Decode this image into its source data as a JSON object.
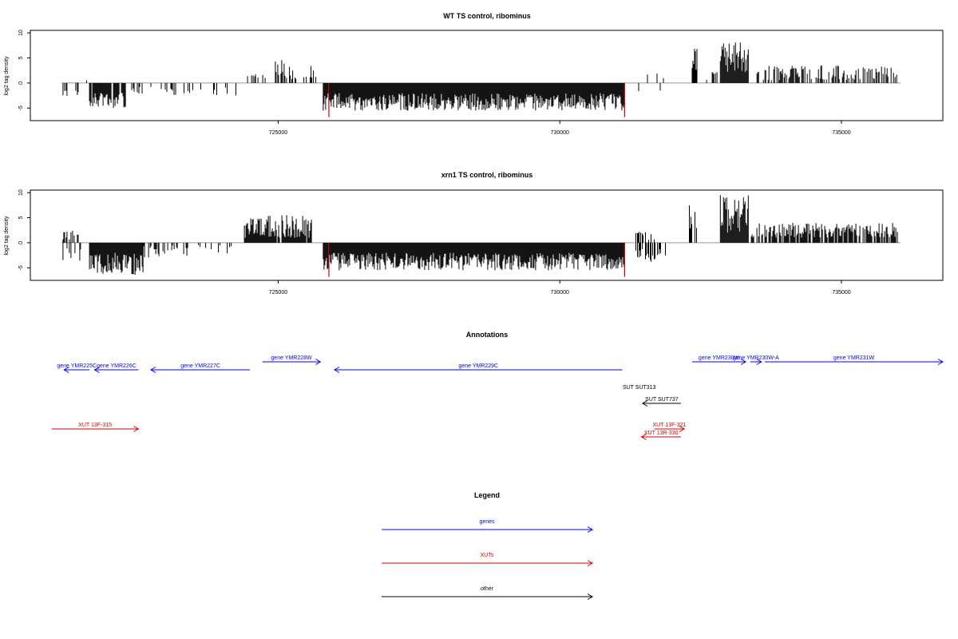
{
  "chart_data": [
    {
      "type": "bar",
      "title": "WT TS control, ribominus",
      "xlabel": "",
      "ylabel": "log2 tag density",
      "xlim": [
        720600,
        736800
      ],
      "ylim": [
        -7.5,
        10.5
      ],
      "x_ticks": [
        {
          "value": 725000,
          "label": "725000"
        },
        {
          "value": 730000,
          "label": "730000"
        },
        {
          "value": 735000,
          "label": "735000"
        }
      ],
      "y_ticks": [
        {
          "value": -5,
          "label": "-5"
        },
        {
          "value": 0,
          "label": "0"
        },
        {
          "value": 5,
          "label": "5"
        },
        {
          "value": 10,
          "label": "10"
        }
      ],
      "colors": {
        "signal": "#000000",
        "highlight": "#cc0000",
        "baseline": "#999999"
      },
      "segments": [
        {
          "x": [
            721180,
            721450
          ],
          "y": [
            -3,
            -1
          ],
          "density": 0.25,
          "seed": 11
        },
        {
          "x": [
            721400,
            721600
          ],
          "y": [
            0,
            1
          ],
          "density": 0.15,
          "seed": 12
        },
        {
          "x": [
            721650,
            722300
          ],
          "y": [
            -5,
            -2
          ],
          "density": 0.9,
          "seed": 13
        },
        {
          "x": [
            722400,
            723200
          ],
          "y": [
            -2.5,
            -0.5
          ],
          "density": 0.25,
          "seed": 14
        },
        {
          "x": [
            723300,
            724300
          ],
          "y": [
            -2.5,
            -0.5
          ],
          "density": 0.15,
          "seed": 15
        },
        {
          "x": [
            724400,
            724900
          ],
          "y": [
            0.5,
            2
          ],
          "density": 0.2,
          "seed": 16
        },
        {
          "x": [
            724950,
            725150
          ],
          "y": [
            1,
            5
          ],
          "density": 0.5,
          "seed": 17
        },
        {
          "x": [
            725200,
            725700
          ],
          "y": [
            0.5,
            3.5
          ],
          "density": 0.25,
          "seed": 18
        },
        {
          "x": [
            725800,
            731150
          ],
          "y": [
            -5.5,
            -2
          ],
          "density": 1.0,
          "seed": 19
        },
        {
          "x": [
            731400,
            731900
          ],
          "y": [
            -2,
            2
          ],
          "density": 0.3,
          "seed": 20
        },
        {
          "x": [
            732350,
            732450
          ],
          "y": [
            2,
            7.5
          ],
          "density": 0.8,
          "seed": 21
        },
        {
          "x": [
            732550,
            732800
          ],
          "y": [
            0.5,
            2.5
          ],
          "density": 0.2,
          "seed": 22
        },
        {
          "x": [
            732850,
            733350
          ],
          "y": [
            2,
            8.5
          ],
          "density": 1.0,
          "seed": 23
        },
        {
          "x": [
            733500,
            736000
          ],
          "y": [
            0.5,
            3.5
          ],
          "density": 0.5,
          "seed": 24
        }
      ],
      "highlights": [
        {
          "x": 725900,
          "y": -6.8
        },
        {
          "x": 731150,
          "y": -6.8
        }
      ]
    },
    {
      "type": "bar",
      "title": "xrn1 TS control, ribominus",
      "xlabel": "",
      "ylabel": "log2 tag density",
      "xlim": [
        720600,
        736800
      ],
      "ylim": [
        -7.5,
        10.5
      ],
      "x_ticks": [
        {
          "value": 725000,
          "label": "725000"
        },
        {
          "value": 730000,
          "label": "730000"
        },
        {
          "value": 735000,
          "label": "735000"
        }
      ],
      "y_ticks": [
        {
          "value": -5,
          "label": "-5"
        },
        {
          "value": 0,
          "label": "0"
        },
        {
          "value": 5,
          "label": "5"
        },
        {
          "value": 10,
          "label": "10"
        }
      ],
      "colors": {
        "signal": "#000000",
        "highlight": "#cc0000",
        "baseline": "#999999"
      },
      "segments": [
        {
          "x": [
            721180,
            721450
          ],
          "y": [
            0.5,
            2.5
          ],
          "density": 0.5,
          "seed": 31
        },
        {
          "x": [
            721180,
            721500
          ],
          "y": [
            -4,
            -1
          ],
          "density": 0.4,
          "seed": 32
        },
        {
          "x": [
            721650,
            722600
          ],
          "y": [
            -6.5,
            -2
          ],
          "density": 1.0,
          "seed": 33
        },
        {
          "x": [
            722600,
            723400
          ],
          "y": [
            -3,
            -0.5
          ],
          "density": 0.4,
          "seed": 34
        },
        {
          "x": [
            723400,
            724200
          ],
          "y": [
            -2.5,
            -0.5
          ],
          "density": 0.2,
          "seed": 35
        },
        {
          "x": [
            724400,
            725600
          ],
          "y": [
            1,
            5.5
          ],
          "density": 0.9,
          "seed": 36
        },
        {
          "x": [
            725800,
            731150
          ],
          "y": [
            -5.5,
            -2
          ],
          "density": 1.0,
          "seed": 37
        },
        {
          "x": [
            731350,
            731700
          ],
          "y": [
            0.5,
            2.5
          ],
          "density": 0.5,
          "seed": 38
        },
        {
          "x": [
            731350,
            731900
          ],
          "y": [
            -4,
            -1
          ],
          "density": 0.5,
          "seed": 39
        },
        {
          "x": [
            732300,
            732450
          ],
          "y": [
            2,
            8
          ],
          "density": 0.8,
          "seed": 40
        },
        {
          "x": [
            732850,
            733350
          ],
          "y": [
            2,
            9.5
          ],
          "density": 1.0,
          "seed": 41
        },
        {
          "x": [
            733400,
            736000
          ],
          "y": [
            1,
            4
          ],
          "density": 0.8,
          "seed": 42
        }
      ],
      "highlights": [
        {
          "x": 725900,
          "y": -6.8
        },
        {
          "x": 731150,
          "y": -6.8
        }
      ]
    }
  ],
  "annotations_panel": {
    "title": "Annotations",
    "xlim": [
      720600,
      736800
    ],
    "features": [
      {
        "label": "gene YMR225C",
        "start": 721200,
        "end": 721650,
        "strand": "-",
        "track": 1,
        "color": "#0000ff"
      },
      {
        "label": "gene YMR226C",
        "start": 721740,
        "end": 722520,
        "strand": "-",
        "track": 1,
        "color": "#0000ff"
      },
      {
        "label": "gene YMR227C",
        "start": 722740,
        "end": 724500,
        "strand": "-",
        "track": 1,
        "color": "#0000ff"
      },
      {
        "label": "gene YMR228W",
        "start": 724720,
        "end": 725750,
        "strand": "+",
        "track": 0,
        "color": "#0000ff"
      },
      {
        "label": "gene YMR229C",
        "start": 726000,
        "end": 731110,
        "strand": "-",
        "track": 1,
        "color": "#0000ff"
      },
      {
        "label": "gene YMR230W",
        "start": 732350,
        "end": 733300,
        "strand": "+",
        "track": 0,
        "color": "#0000ff"
      },
      {
        "label": "gene YMR230W-A",
        "start": 733380,
        "end": 733580,
        "strand": "+",
        "track": 0,
        "color": "#0000ff"
      },
      {
        "label": "gene YMR231W",
        "start": 733640,
        "end": 736800,
        "strand": "+",
        "track": 0,
        "color": "#0000ff"
      },
      {
        "label": "SUT SUT313",
        "start": 731410,
        "end": 731410,
        "strand": "+",
        "track": 2,
        "color": "#000000"
      },
      {
        "label": "SUT SUT737",
        "start": 731470,
        "end": 732150,
        "strand": "-",
        "track": 3,
        "color": "#000000"
      },
      {
        "label": "XUT 13F-315",
        "start": 720980,
        "end": 722520,
        "strand": "+",
        "track": 4,
        "color": "#dd0000"
      },
      {
        "label": "XUT 13F-321",
        "start": 731680,
        "end": 732210,
        "strand": "+",
        "track": 4,
        "color": "#dd0000"
      },
      {
        "label": "XUT 13R-330",
        "start": 731450,
        "end": 732150,
        "strand": "-",
        "track": 5,
        "color": "#dd0000"
      }
    ]
  },
  "legend_panel": {
    "title": "Legend",
    "items": [
      {
        "label": "genes",
        "color": "#0000ff"
      },
      {
        "label": "XUTs",
        "color": "#dd0000"
      },
      {
        "label": "other",
        "color": "#000000"
      }
    ]
  }
}
